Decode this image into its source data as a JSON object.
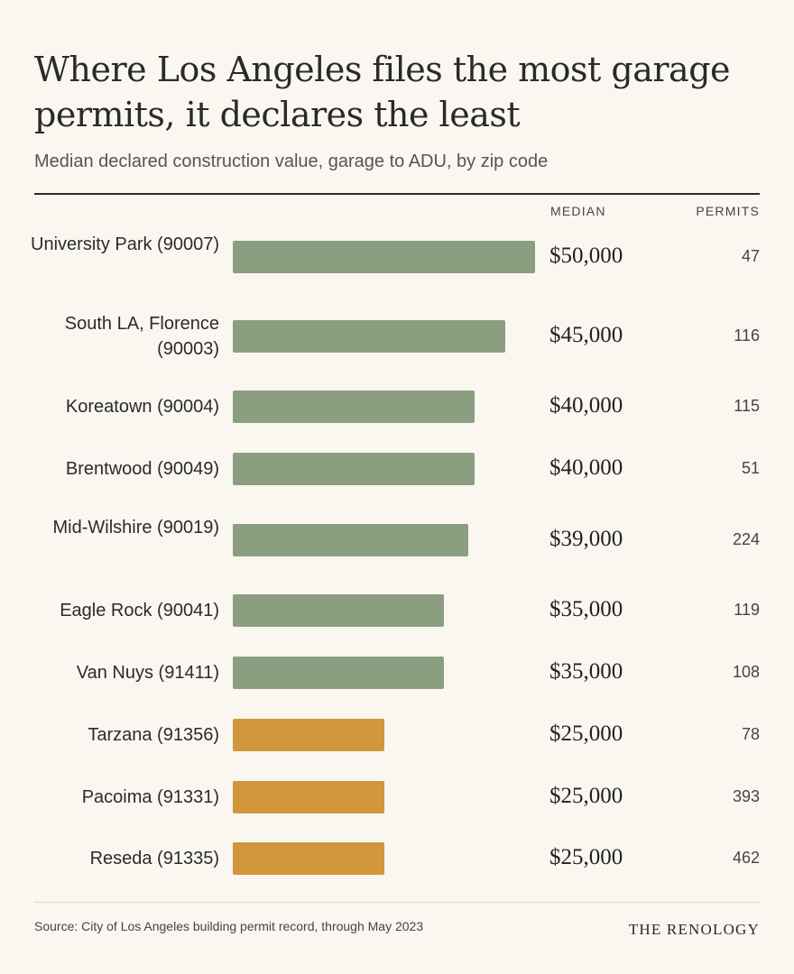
{
  "title": "Where Los Angeles files the most garage permits, it declares the least",
  "subtitle": "Median declared construction value, garage to ADU, by zip code",
  "columns": {
    "median": "MEDIAN",
    "permits": "PERMITS"
  },
  "colors": {
    "green": "#8c9e80",
    "orange": "#d1973c"
  },
  "chart_data": {
    "type": "bar",
    "orientation": "horizontal",
    "categories": [
      "University Park (90007)",
      "South LA, Florence (90003)",
      "Koreatown (90004)",
      "Brentwood (90049)",
      "Mid-Wilshire (90019)",
      "Eagle Rock (90041)",
      "Van Nuys (91411)",
      "Tarzana (91356)",
      "Pacoima (91331)",
      "Reseda (91335)"
    ],
    "values": [
      50000,
      45000,
      40000,
      40000,
      39000,
      35000,
      35000,
      25000,
      25000,
      25000
    ],
    "value_labels": [
      "$50,000",
      "$45,000",
      "$40,000",
      "$40,000",
      "$39,000",
      "$35,000",
      "$35,000",
      "$25,000",
      "$25,000",
      "$25,000"
    ],
    "permits": [
      47,
      116,
      115,
      51,
      224,
      119,
      108,
      78,
      393,
      462
    ],
    "bar_colors": [
      "green",
      "green",
      "green",
      "green",
      "green",
      "green",
      "green",
      "orange",
      "orange",
      "orange"
    ],
    "xlim": [
      0,
      50000
    ],
    "grid": false
  },
  "source": "Source: City of Los Angeles building permit record, through May 2023",
  "brand": "THE RENOLOGY"
}
